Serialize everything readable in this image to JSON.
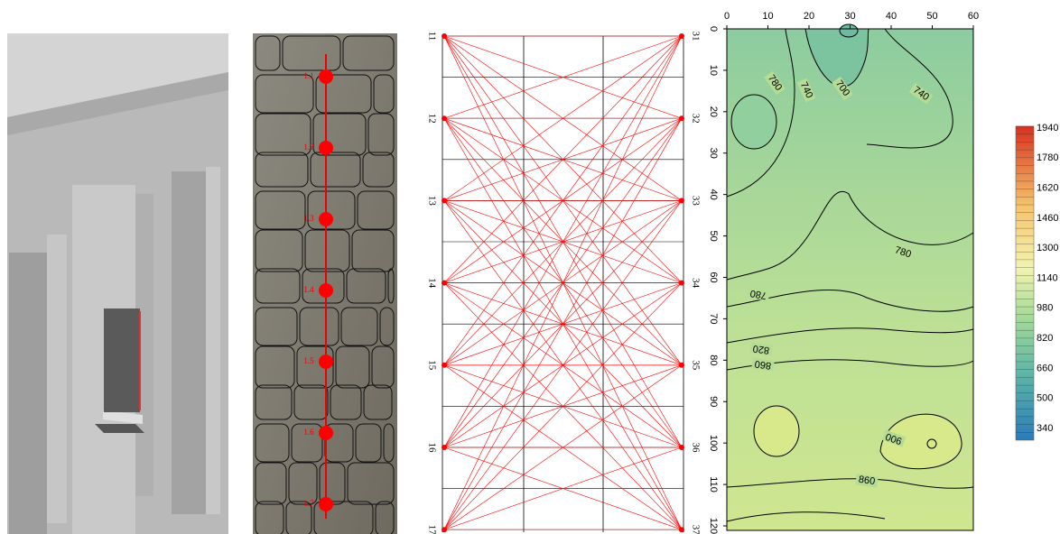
{
  "wall": {
    "points": [
      "1.1",
      "1.2",
      "1.3",
      "1.4",
      "1.5",
      "1.6",
      "1.7"
    ]
  },
  "rays": {
    "left": [
      11,
      12,
      13,
      14,
      15,
      16,
      17
    ],
    "right": [
      31,
      32,
      33,
      34,
      35,
      36,
      37
    ]
  },
  "contour": {
    "xticks": [
      0,
      10,
      20,
      30,
      40,
      50,
      60
    ],
    "yticks": [
      0,
      10,
      20,
      30,
      40,
      50,
      60,
      70,
      80,
      90,
      100,
      110,
      120
    ],
    "levels": [
      780,
      740,
      700,
      740,
      780,
      780,
      820,
      860,
      900,
      860
    ]
  },
  "colorbar": {
    "labels": [
      1940,
      1780,
      1620,
      1460,
      1300,
      1140,
      980,
      820,
      660,
      500,
      340
    ]
  }
}
